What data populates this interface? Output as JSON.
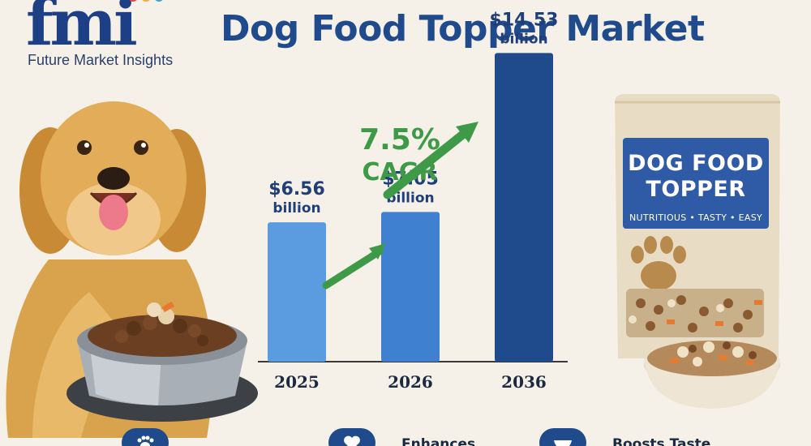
{
  "header": {
    "logo_mark": "fmi",
    "logo_subtitle": "Future Market Insights",
    "title": "Dog Food Topper Market"
  },
  "chart_data": {
    "type": "bar",
    "title": "Dog Food Topper Market",
    "xlabel": "",
    "ylabel": "",
    "categories": [
      "2025",
      "2026",
      "2036"
    ],
    "values": [
      6.56,
      7.05,
      14.53
    ],
    "value_labels": [
      "$6.56",
      "$7.05",
      "$14.53"
    ],
    "unit_label": "billion",
    "unit": "USD billion",
    "ylim": [
      0,
      15.5
    ],
    "grid": false,
    "colors": [
      "#5b9be0",
      "#3f80d0",
      "#1f4b8c"
    ],
    "annotations": [
      {
        "text": "7.5%",
        "subtext": "CAGR",
        "color": "#3f9a47"
      }
    ]
  },
  "product": {
    "title_line1": "DOG FOOD",
    "title_line2": "TOPPER",
    "tagline": "NUTRITIOUS • TASTY • EASY",
    "panel_color": "#2e5aa6"
  },
  "benefits": [
    {
      "label": "",
      "icon": "paw-icon"
    },
    {
      "label": "Enhances",
      "icon": "heart-icon"
    },
    {
      "label": "Boosts Taste",
      "icon": "bowl-icon"
    }
  ],
  "colors": {
    "background": "#f6f1e8",
    "title": "#1f4b8c",
    "accent_green": "#3f9a47",
    "brand_navy": "#1d3f86"
  }
}
